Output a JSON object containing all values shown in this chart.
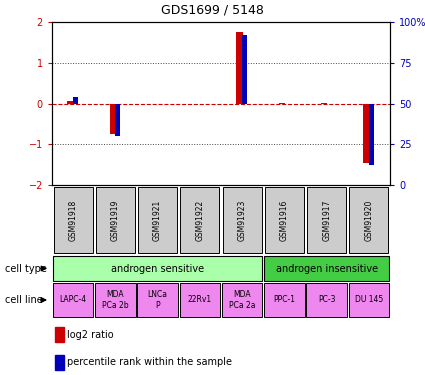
{
  "title": "GDS1699 / 5148",
  "samples": [
    "GSM91918",
    "GSM91919",
    "GSM91921",
    "GSM91922",
    "GSM91923",
    "GSM91916",
    "GSM91917",
    "GSM91920"
  ],
  "log2_ratio": [
    0.05,
    -0.75,
    0.0,
    0.0,
    1.75,
    0.02,
    0.02,
    -1.45
  ],
  "percentile_rank_raw": [
    54,
    30,
    50,
    50,
    92,
    50,
    50,
    12
  ],
  "ylim": [
    -2,
    2
  ],
  "yticks_left": [
    -2,
    -1,
    0,
    1,
    2
  ],
  "right_axis_color": "#0000bb",
  "left_axis_color": "#cc0000",
  "bar_color_red": "#cc0000",
  "bar_color_blue": "#0000bb",
  "dotted_line_color": "#444444",
  "zero_line_color": "#cc0000",
  "cell_type_groups": [
    {
      "label": "androgen sensitive",
      "start": 0,
      "end": 5,
      "color": "#aaffaa"
    },
    {
      "label": "androgen insensitive",
      "start": 5,
      "end": 8,
      "color": "#44cc44"
    }
  ],
  "cell_lines": [
    {
      "label": "LAPC-4",
      "col": 0,
      "color": "#ee88ee"
    },
    {
      "label": "MDA\nPCa 2b",
      "col": 1,
      "color": "#ee88ee"
    },
    {
      "label": "LNCa\nP",
      "col": 2,
      "color": "#ee88ee"
    },
    {
      "label": "22Rv1",
      "col": 3,
      "color": "#ee88ee"
    },
    {
      "label": "MDA\nPCa 2a",
      "col": 4,
      "color": "#ee88ee"
    },
    {
      "label": "PPC-1",
      "col": 5,
      "color": "#ee88ee"
    },
    {
      "label": "PC-3",
      "col": 6,
      "color": "#ee88ee"
    },
    {
      "label": "DU 145",
      "col": 7,
      "color": "#ee88ee"
    }
  ],
  "legend_red_label": "log2 ratio",
  "legend_blue_label": "percentile rank within the sample",
  "cell_type_label": "cell type",
  "cell_line_label": "cell line",
  "bg_color": "#ffffff",
  "sample_box_color": "#cccccc"
}
